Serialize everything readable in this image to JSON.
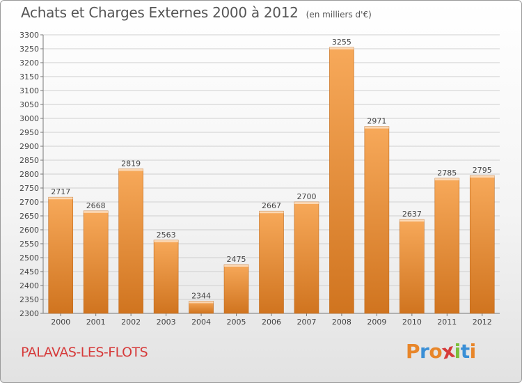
{
  "chart_data": {
    "type": "bar",
    "title": "Achats et Charges Externes 2000 à 2012",
    "subtitle": "(en milliers d'€)",
    "categories": [
      "2000",
      "2001",
      "2002",
      "2003",
      "2004",
      "2005",
      "2006",
      "2007",
      "2008",
      "2009",
      "2010",
      "2011",
      "2012"
    ],
    "values": [
      2717,
      2668,
      2819,
      2563,
      2344,
      2475,
      2667,
      2700,
      3255,
      2971,
      2637,
      2785,
      2795
    ],
    "ylim": [
      2300,
      3300
    ],
    "yticks": [
      2300,
      2350,
      2400,
      2450,
      2500,
      2550,
      2600,
      2650,
      2700,
      2750,
      2800,
      2850,
      2900,
      2950,
      3000,
      3050,
      3100,
      3150,
      3200,
      3250,
      3300
    ],
    "grid": true,
    "bar_color_top": "#f7a95a",
    "bar_color_bottom": "#d0741f"
  },
  "footer": {
    "city": "PALAVAS-LES-FLOTS",
    "logo": "Proxiti"
  },
  "colors": {
    "city": "#d63a3a",
    "logo_letters": [
      "#e8862a",
      "#3a8fd6",
      "#e8862a",
      "#d63a3a",
      "#7cbf3a",
      "#3a8fd6",
      "#e8862a"
    ]
  }
}
